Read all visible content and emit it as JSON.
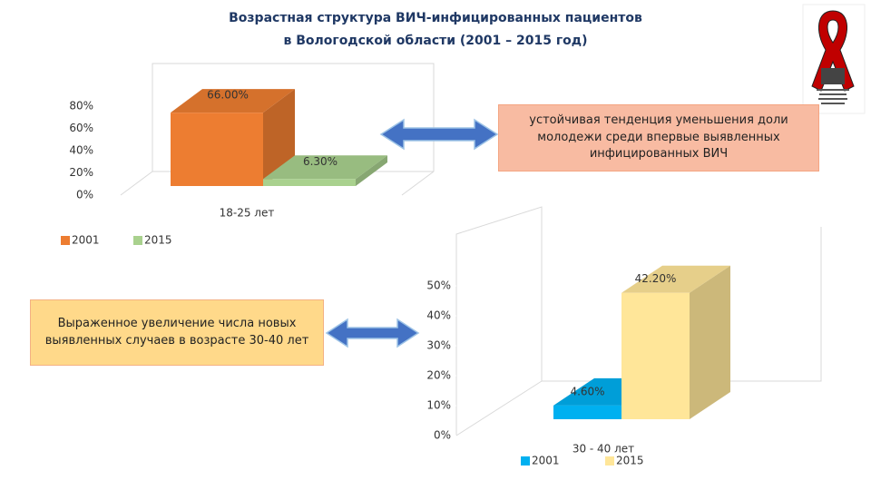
{
  "title": [
    "Возрастная структура   ВИЧ-инфицированных пациентов",
    "в Вологодской области (2001 – 2015 год)"
  ],
  "callouts": [
    "устойчивая тенденция уменьшения доли молодежи среди впервые выявленных инфицированных ВИЧ",
    "Выраженное увеличение числа новых выявленных случаев в возрасте 30-40 лет"
  ],
  "chart_data": [
    {
      "type": "bar",
      "categories": [
        "18-25 лет"
      ],
      "series": [
        {
          "name": "2001",
          "color": "#ed7d31",
          "values": [
            66
          ],
          "value_labels": [
            "66.00%"
          ]
        },
        {
          "name": "2015",
          "color": "#a9d18e",
          "values": [
            6.3
          ],
          "value_labels": [
            "6.30%"
          ]
        }
      ],
      "ylim": [
        0,
        80
      ],
      "yticks": [
        {
          "value": 0,
          "label": "0%"
        },
        {
          "value": 20,
          "label": "20%"
        },
        {
          "value": 40,
          "label": "40%"
        },
        {
          "value": 60,
          "label": "60%"
        },
        {
          "value": 80,
          "label": "80%"
        }
      ]
    },
    {
      "type": "bar",
      "categories": [
        "30 - 40 лет"
      ],
      "series": [
        {
          "name": "2001",
          "color": "#00b0f0",
          "values": [
            4.6
          ],
          "value_labels": [
            "4.60%"
          ]
        },
        {
          "name": "2015",
          "color": "#ffe699",
          "values": [
            42.2
          ],
          "value_labels": [
            "42.20%"
          ]
        }
      ],
      "ylim": [
        0,
        50
      ],
      "yticks": [
        {
          "value": 0,
          "label": "0%"
        },
        {
          "value": 10,
          "label": "10%"
        },
        {
          "value": 20,
          "label": "20%"
        },
        {
          "value": 30,
          "label": "30%"
        },
        {
          "value": 40,
          "label": "40%"
        },
        {
          "value": 50,
          "label": "50%"
        }
      ]
    }
  ]
}
